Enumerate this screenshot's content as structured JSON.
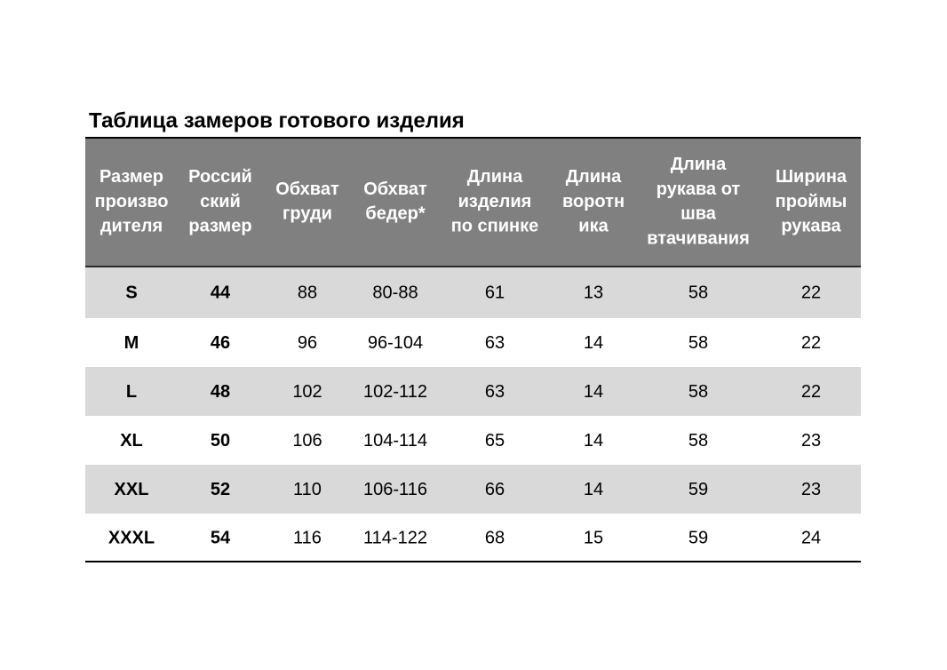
{
  "title": "Таблица замеров готового изделия",
  "table": {
    "header": [
      [
        "Размер",
        "произво",
        "дителя"
      ],
      [
        "Россий",
        "ский",
        "размер"
      ],
      [
        "Обхват",
        "груди"
      ],
      [
        "Обхват",
        "бедер*"
      ],
      [
        "Длина",
        "изделия",
        "по спинке"
      ],
      [
        "Длина",
        "воротн",
        "ика"
      ],
      [
        "Длина",
        "рукава от",
        "шва",
        "втачивания"
      ],
      [
        "Ширина",
        "проймы",
        "рукава"
      ]
    ],
    "rows": [
      [
        "S",
        "44",
        "88",
        "80-88",
        "61",
        "13",
        "58",
        "22"
      ],
      [
        "M",
        "46",
        "96",
        "96-104",
        "63",
        "14",
        "58",
        "22"
      ],
      [
        "L",
        "48",
        "102",
        "102-112",
        "63",
        "14",
        "58",
        "22"
      ],
      [
        "XL",
        "50",
        "106",
        "104-114",
        "65",
        "14",
        "58",
        "23"
      ],
      [
        "XXL",
        "52",
        "110",
        "106-116",
        "66",
        "14",
        "59",
        "23"
      ],
      [
        "XXXL",
        "54",
        "116",
        "114-122",
        "68",
        "15",
        "59",
        "24"
      ]
    ]
  }
}
